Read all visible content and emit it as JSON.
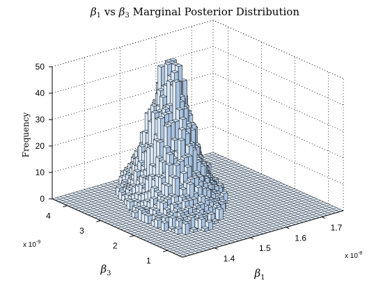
{
  "chart_data": {
    "type": "histogram3d",
    "title": {
      "x_symbol": "β",
      "x_sub": "1",
      "vs": "vs",
      "y_symbol": "β",
      "y_sub": "3",
      "rest": "Marginal Posterior Distribution"
    },
    "zlabel": "Frequency",
    "xlabel": {
      "symbol": "β",
      "sub": "1"
    },
    "ylabel": {
      "symbol": "β",
      "sub": "3"
    },
    "x_multiplier": {
      "base": "x 10",
      "exp": "-8"
    },
    "y_multiplier": {
      "base": "x 10",
      "exp": "-9"
    },
    "x_ticks": [
      "1.4",
      "1.5",
      "1.6",
      "1.7"
    ],
    "y_ticks": [
      "1",
      "2",
      "3",
      "4"
    ],
    "z_ticks": [
      "0",
      "10",
      "20",
      "30",
      "40",
      "50"
    ],
    "xlim": [
      1.31,
      1.76
    ],
    "ylim": [
      0.55,
      4.45
    ],
    "zlim": [
      0,
      50
    ],
    "grid": true,
    "bar_color": "#c9ddf2",
    "bins": 40,
    "peak": {
      "x": 1.53,
      "y": 3.25,
      "frequency": 49
    }
  }
}
